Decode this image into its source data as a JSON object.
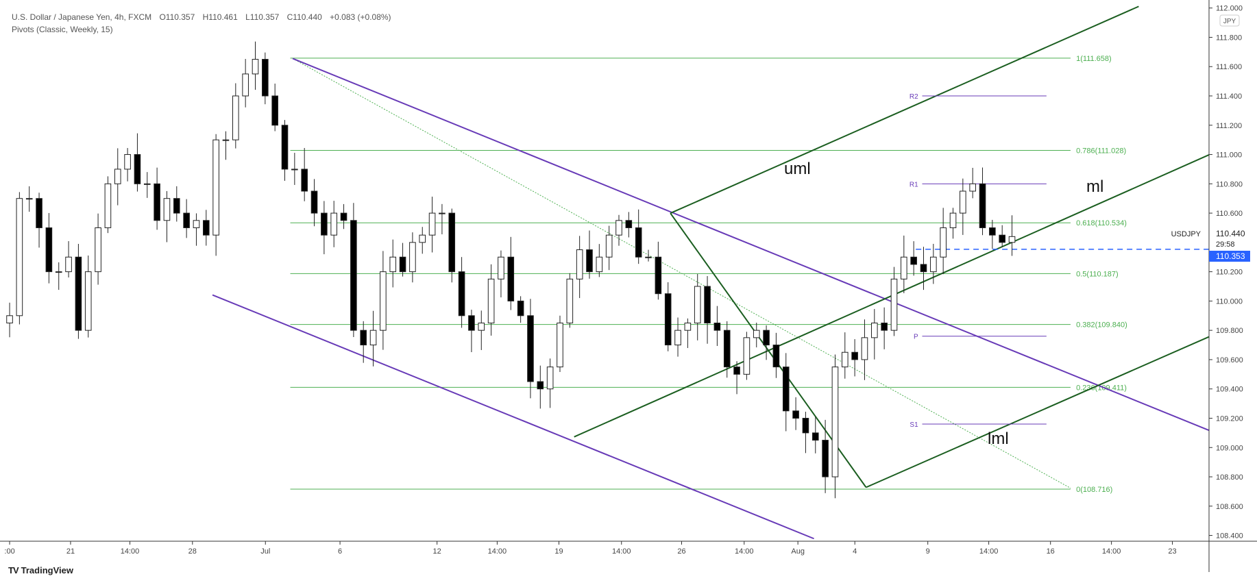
{
  "header": {
    "symbol_title": "U.S. Dollar / Japanese Yen, 4h, FXCM",
    "open": "O110.357",
    "high": "H110.461",
    "low": "L110.357",
    "close": "C110.440",
    "change": "+0.083 (+0.08%)",
    "indicator": "Pivots (Classic, Weekly, 15)"
  },
  "footer": {
    "brand": "TradingView"
  },
  "colors": {
    "up": "#ffffff",
    "down": "#000000",
    "fib": "#4caf50",
    "channel": "#673ab7",
    "pitchfork": "#1b5e20",
    "pivot": "#673ab7",
    "price_line": "#2962ff"
  },
  "chart_data": {
    "type": "candlestick",
    "currency_label": "JPY",
    "ylim": [
      108.35,
      112.0
    ],
    "y_ticks": [
      "112.000",
      "111.800",
      "111.600",
      "111.400",
      "111.200",
      "111.000",
      "110.800",
      "110.600",
      "110.200",
      "110.000",
      "109.800",
      "109.600",
      "109.400",
      "109.200",
      "109.000",
      "108.800",
      "108.600",
      "108.400"
    ],
    "x_ticks": [
      ":00",
      "21",
      "14:00",
      "28",
      "Jul",
      "6",
      "12",
      "14:00",
      "19",
      "14:00",
      "26",
      "14:00",
      "Aug",
      "4",
      "9",
      "14:00",
      "16",
      "14:00",
      "23"
    ],
    "closes": [
      109.9,
      110.7,
      110.7,
      110.5,
      110.2,
      110.2,
      110.3,
      109.8,
      110.2,
      110.5,
      110.8,
      110.9,
      111.0,
      110.8,
      110.8,
      110.55,
      110.7,
      110.6,
      110.5,
      110.55,
      110.45,
      111.1,
      111.1,
      111.4,
      111.55,
      111.65,
      111.4,
      111.2,
      110.9,
      110.9,
      110.75,
      110.6,
      110.45,
      110.6,
      110.55,
      109.8,
      109.7,
      109.8,
      110.2,
      110.3,
      110.2,
      110.4,
      110.45,
      110.6,
      110.6,
      110.2,
      109.9,
      109.8,
      109.85,
      110.15,
      110.3,
      110.0,
      109.9,
      109.45,
      109.4,
      109.55,
      109.85,
      110.15,
      110.35,
      110.2,
      110.3,
      110.45,
      110.55,
      110.5,
      110.3,
      110.3,
      110.05,
      109.7,
      109.8,
      109.85,
      110.1,
      109.85,
      109.8,
      109.55,
      109.5,
      109.75,
      109.8,
      109.7,
      109.55,
      109.25,
      109.2,
      109.1,
      109.05,
      108.8,
      109.55,
      109.65,
      109.6,
      109.75,
      109.85,
      109.8,
      110.15,
      110.3,
      110.25,
      110.2,
      110.3,
      110.5,
      110.6,
      110.75,
      110.8,
      110.5,
      110.45,
      110.4,
      110.44
    ],
    "last_price": {
      "symbol": "USDJPY",
      "value": "110.440",
      "countdown": "29:58",
      "bid": "110.353",
      "bid_value": 110.353
    },
    "fibonacci": [
      {
        "label": "1(111.658)",
        "value": 111.658
      },
      {
        "label": "0.786(111.028)",
        "value": 111.028
      },
      {
        "label": "0.618(110.534)",
        "value": 110.534
      },
      {
        "label": "0.5(110.187)",
        "value": 110.187
      },
      {
        "label": "0.382(109.840)",
        "value": 109.84
      },
      {
        "label": "0.236(109.411)",
        "value": 109.411
      },
      {
        "label": "0(108.716)",
        "value": 108.716
      }
    ],
    "pivots": [
      {
        "label": "R2",
        "value": 111.4
      },
      {
        "label": "R1",
        "value": 110.8
      },
      {
        "label": "P",
        "value": 109.76
      },
      {
        "label": "S1",
        "value": 109.16
      }
    ],
    "pitchfork_labels": {
      "upper": "uml",
      "median": "ml",
      "lower": "lml"
    }
  }
}
